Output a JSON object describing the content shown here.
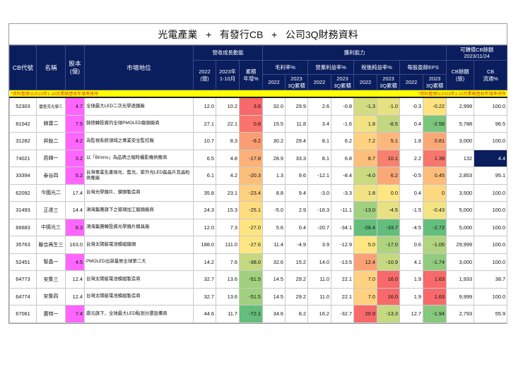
{
  "title": "光電產業   +   有發行CB   +   公司3Q財務資料",
  "colors": {
    "header_bg": "#0a1e5e",
    "note_bg": "#ffff00",
    "note_text": "#e0301e",
    "highlight_capital": "#ff66ff",
    "highlight_low_float": "#0a1e5e"
  },
  "header": {
    "cb_code": "CB代號",
    "name": "名稱",
    "capital": "股本\n(億)",
    "market_position": "市場地位",
    "revenue_group": "營收成長動能",
    "revenue_2022": "2022\n(億)",
    "revenue_2023": "2023年\n1-10月",
    "revenue_yoy": "累積\n年增%",
    "profit_group": "獲利能力",
    "gross_margin": "毛利率%",
    "operating_margin": "營業利益率%",
    "net_margin": "稅後純益率%",
    "eps": "每股盈餘EPS",
    "y2022": "2022",
    "y2023_3q": "2023\n3Q累積",
    "cb_group": "可轉債CB餘額\n2023/11/24",
    "cb_balance": "CB餘額\n(張)",
    "cb_float": "CB\n流通%"
  },
  "note": {
    "left": "*資料整理以2023年1-10月累積營收年增率排序",
    "right": "*資料整理以2023年1-10月累積營收年增率排序"
  },
  "rows": [
    {
      "code": "52303",
      "name": "雷笛克光學三",
      "capital": "4.7",
      "position": "全球最大LED二次光學透鏡廠",
      "rev2022": "12.0",
      "rev2023": "10.2",
      "yoy": "3.8",
      "gm22": "32.0",
      "gm23": "29.9",
      "om22": "2.6",
      "om23": "-0.8",
      "nm22": "-1.3",
      "nm23": "-1.0",
      "eps22": "-0.3",
      "eps23": "-0.22",
      "cb_bal": "2,999",
      "cb_float": "100.0"
    },
    {
      "code": "81042",
      "name": "錸寶二",
      "capital": "7.5",
      "position": "錸德轉投資的全球PMOLED龍頭廠商",
      "rev2022": "27.1",
      "rev2023": "22.1",
      "yoy": "0.8",
      "gm22": "15.5",
      "gm23": "11.8",
      "om22": "3.4",
      "om23": "-1.6",
      "nm22": "1.8",
      "nm23": "-8.5",
      "eps22": "0.4",
      "eps23": "-2.58",
      "cb_bal": "5,788",
      "cb_float": "96.5"
    },
    {
      "code": "31282",
      "name": "昇銳二",
      "capital": "4.2",
      "position": "為監視系統領域之專業安全監控廠",
      "rev2022": "10.7",
      "rev2023": "8.3",
      "yoy": "-9.2",
      "gm22": "30.2",
      "gm23": "29.4",
      "om22": "8.1",
      "om23": "6.2",
      "nm22": "7.2",
      "nm23": "5.1",
      "eps22": "1.8",
      "eps23": "0.81",
      "cb_bal": "3,000",
      "cb_float": "100.0"
    },
    {
      "code": "74021",
      "name": "邑錡一",
      "capital": "3.2",
      "position": "以「Brinno」為品牌之縮時攝影機供應商",
      "rev2022": "6.5",
      "rev2023": "4.8",
      "yoy": "-17.8",
      "gm22": "28.9",
      "gm23": "33.3",
      "om22": "8.1",
      "om23": "6.8",
      "nm22": "8.7",
      "nm23": "10.1",
      "eps22": "2.2",
      "eps23": "1.39",
      "cb_bal": "132",
      "cb_float": "4.4"
    },
    {
      "code": "33394",
      "name": "泰谷四",
      "capital": "5.2",
      "position": "台灣專業生產綠光、藍光、紫外光LED磊晶片及晶粒供應廠",
      "rev2022": "6.1",
      "rev2023": "4.2",
      "yoy": "-20.3",
      "gm22": "1.3",
      "gm23": "9.6",
      "om22": "-12.1",
      "om23": "-8.4",
      "nm22": "-4.0",
      "nm23": "6.2",
      "eps22": "-0.5",
      "eps23": "0.45",
      "cb_bal": "2,853",
      "cb_float": "95.1"
    },
    {
      "code": "62092",
      "name": "今國光二",
      "capital": "17.4",
      "position": "台灣光學鏡片、鏡頭製造商",
      "rev2022": "35.8",
      "rev2023": "23.1",
      "yoy": "-23.4",
      "gm22": "8.8",
      "gm23": "9.4",
      "om22": "-3.0",
      "om23": "-3.3",
      "nm22": "1.8",
      "nm23": "0.0",
      "eps22": "0.4",
      "eps23": "0",
      "cb_bal": "3,500",
      "cb_float": "100.0"
    },
    {
      "code": "31493",
      "name": "正達三",
      "capital": "14.4",
      "position": "鴻海集團旗下之玻璃加工龍頭廠商",
      "rev2022": "24.3",
      "rev2023": "15.3",
      "yoy": "-25.1",
      "gm22": "-5.0",
      "gm23": "2.9",
      "om22": "-16.3",
      "om23": "-11.1",
      "nm22": "-13.0",
      "nm23": "-4.5",
      "eps22": "-1.5",
      "eps23": "-0.43",
      "cb_bal": "5,000",
      "cb_float": "100.0"
    },
    {
      "code": "66683",
      "name": "中揚光三",
      "capital": "8.3",
      "position": "鴻海集團轉投資光學鏡片模具廠",
      "rev2022": "12.0",
      "rev2023": "7.3",
      "yoy": "-27.0",
      "gm22": "5.6",
      "gm23": "0.4",
      "om22": "-20.7",
      "om23": "-34.1",
      "nm22": "-28.4",
      "nm23": "-33.7",
      "eps22": "-4.5",
      "eps23": "-2.72",
      "cb_bal": "5,000",
      "cb_float": "100.0"
    },
    {
      "code": "35763",
      "name": "聯合再生三",
      "capital": "163.0",
      "position": "台灣太陽能電池模組龍頭",
      "rev2022": "188.0",
      "rev2023": "111.0",
      "yoy": "-27.6",
      "gm22": "11.4",
      "gm23": "-4.9",
      "om22": "3.9",
      "om23": "-12.9",
      "nm22": "5.0",
      "nm23": "-17.0",
      "eps22": "0.6",
      "eps23": "-1.06",
      "cb_bal": "29,999",
      "cb_float": "100.0"
    },
    {
      "code": "52451",
      "name": "智晶一",
      "capital": "4.5",
      "position": "PMOLED出貨量居全球第二大",
      "rev2022": "14.2",
      "rev2023": "7.6",
      "yoy": "-38.0",
      "gm22": "32.6",
      "gm23": "15.2",
      "om22": "14.0",
      "om23": "-13.5",
      "nm22": "12.4",
      "nm23": "-10.9",
      "eps22": "4.1",
      "eps23": "-1.74",
      "cb_bal": "3,000",
      "cb_float": "100.0"
    },
    {
      "code": "64773",
      "name": "安集三",
      "capital": "12.4",
      "position": "台灣太陽能電池模組製造商",
      "rev2022": "32.7",
      "rev2023": "13.6",
      "yoy": "-51.5",
      "gm22": "14.5",
      "gm23": "29.2",
      "om22": "11.0",
      "om23": "22.1",
      "nm22": "7.0",
      "nm23": "16.0",
      "eps22": "1.9",
      "eps23": "1.63",
      "cb_bal": "1,933",
      "cb_float": "38.7"
    },
    {
      "code": "64774",
      "name": "安集四",
      "capital": "12.4",
      "position": "台灣太陽能電池模組製造商",
      "rev2022": "32.7",
      "rev2023": "13.6",
      "yoy": "-51.5",
      "gm22": "14.5",
      "gm23": "29.2",
      "om22": "11.0",
      "om23": "22.1",
      "nm22": "7.0",
      "nm23": "16.0",
      "eps22": "1.9",
      "eps23": "1.63",
      "cb_bal": "9,999",
      "cb_float": "100.0"
    },
    {
      "code": "67061",
      "name": "惠特一",
      "capital": "7.4",
      "position": "鼎元旗下，全球最大LED點測分選設備商",
      "rev2022": "44.6",
      "rev2023": "11.7",
      "yoy": "-72.1",
      "gm22": "34.6",
      "gm23": "8.2",
      "om22": "16.2",
      "om23": "-32.7",
      "nm22": "20.9",
      "nm23": "-13.3",
      "eps22": "12.7",
      "eps23": "-1.94",
      "cb_bal": "2,793",
      "cb_float": "55.9"
    }
  ],
  "cell_colors": {
    "yoy": [
      "#f8696b",
      "#f8746c",
      "#fa9c74",
      "#fbb179",
      "#fcbf7b",
      "#fed07f",
      "#fedd81",
      "#fee582",
      "#fee783",
      "#c5d980",
      "#a1d07e",
      "#a1d07e",
      "#63be7b"
    ],
    "nm22": [
      "#d3dc82",
      "#f1e384",
      "#fed280",
      "#fcbf7b",
      "#c9da81",
      "#f1e384",
      "#a1d07e",
      "#63be7b",
      "#fee783",
      "#fba176",
      "#fed280",
      "#fed280",
      "#f8696b"
    ],
    "nm23": [
      "#e8e183",
      "#c2d780",
      "#fdb77a",
      "#f8816e",
      "#fba877",
      "#fee783",
      "#e8e183",
      "#63be7b",
      "#aed47f",
      "#c5d980",
      "#f8696b",
      "#f8696b",
      "#c5d980"
    ],
    "eps23": [
      "#fee282",
      "#7cc57d",
      "#fba877",
      "#f8776d",
      "#fcbd7b",
      "#fed880",
      "#f2e484",
      "#63be7b",
      "#b0d47f",
      "#91cb7d",
      "#f8696b",
      "#f8696b",
      "#86c87d"
    ],
    "capital_highlight": [
      true,
      true,
      true,
      true,
      true,
      false,
      false,
      true,
      false,
      true,
      false,
      false,
      true
    ],
    "float_highlight": [
      false,
      false,
      false,
      true,
      false,
      false,
      false,
      false,
      false,
      false,
      false,
      false,
      false
    ],
    "small_name": [
      true,
      false,
      false,
      false,
      false,
      false,
      false,
      false,
      false,
      false,
      false,
      false,
      false
    ]
  }
}
